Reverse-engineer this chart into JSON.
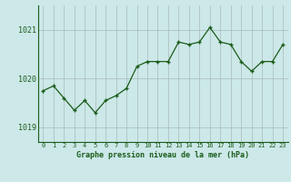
{
  "x": [
    0,
    1,
    2,
    3,
    4,
    5,
    6,
    7,
    8,
    9,
    10,
    11,
    12,
    13,
    14,
    15,
    16,
    17,
    18,
    19,
    20,
    21,
    22,
    23
  ],
  "y": [
    1019.75,
    1019.85,
    1019.6,
    1019.35,
    1019.55,
    1019.3,
    1019.55,
    1019.65,
    1019.8,
    1020.25,
    1020.35,
    1020.35,
    1020.35,
    1020.75,
    1020.7,
    1020.75,
    1021.05,
    1020.75,
    1020.7,
    1020.35,
    1020.15,
    1020.35,
    1020.35,
    1020.7
  ],
  "line_color": "#1a5c1a",
  "marker_color": "#1a5c1a",
  "bg_color": "#cce8e8",
  "grid_color": "#aababa",
  "xlabel": "Graphe pression niveau de la mer (hPa)",
  "xlabel_color": "#1a5c1a",
  "yticks": [
    1019,
    1020,
    1021
  ],
  "ylim": [
    1018.7,
    1021.5
  ],
  "xlim": [
    -0.5,
    23.5
  ],
  "tick_label_color": "#1a5c1a"
}
